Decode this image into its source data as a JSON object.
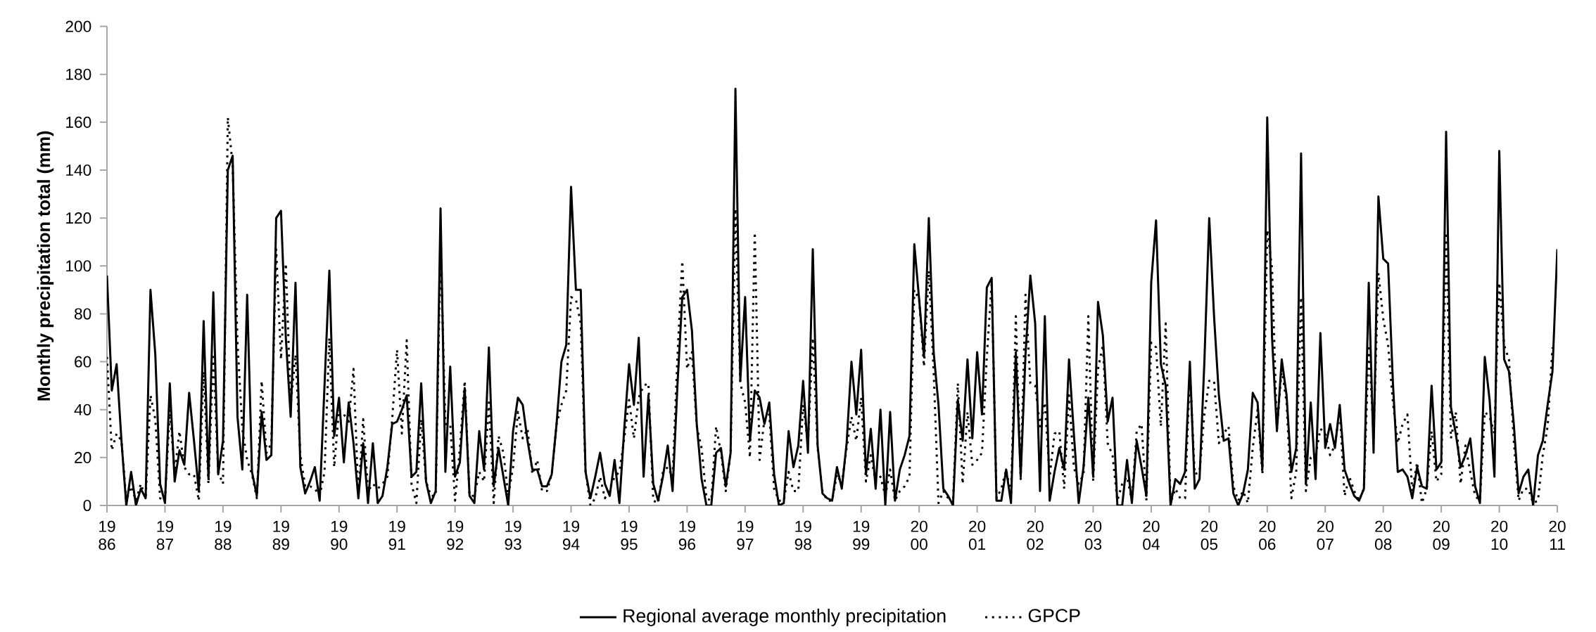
{
  "chart_data": {
    "type": "line",
    "ylabel": "Monthly precipitation total (mm)",
    "x": [
      "1986-01",
      "1986-02",
      "1986-03",
      "1986-04",
      "1986-05",
      "1986-06",
      "1986-07",
      "1986-08",
      "1986-09",
      "1986-10",
      "1986-11",
      "1986-12",
      "1987-01",
      "1987-02",
      "1987-03",
      "1987-04",
      "1987-05",
      "1987-06",
      "1987-07",
      "1987-08",
      "1987-09",
      "1987-10",
      "1987-11",
      "1987-12",
      "1988-01",
      "1988-02",
      "1988-03",
      "1988-04",
      "1988-05",
      "1988-06",
      "1988-07",
      "1988-08",
      "1988-09",
      "1988-10",
      "1988-11",
      "1988-12",
      "1989-01",
      "1989-02",
      "1989-03",
      "1989-04",
      "1989-05",
      "1989-06",
      "1989-07",
      "1989-08",
      "1989-09",
      "1989-10",
      "1989-11",
      "1989-12",
      "1990-01",
      "1990-02",
      "1990-03",
      "1990-04",
      "1990-05",
      "1990-06",
      "1990-07",
      "1990-08",
      "1990-09",
      "1990-10",
      "1990-11",
      "1990-12",
      "1991-01",
      "1991-02",
      "1991-03",
      "1991-04",
      "1991-05",
      "1991-06",
      "1991-07",
      "1991-08",
      "1991-09",
      "1991-10",
      "1991-11",
      "1991-12",
      "1992-01",
      "1992-02",
      "1992-03",
      "1992-04",
      "1992-05",
      "1992-06",
      "1992-07",
      "1992-08",
      "1992-09",
      "1992-10",
      "1992-11",
      "1992-12",
      "1993-01",
      "1993-02",
      "1993-03",
      "1993-04",
      "1993-05",
      "1993-06",
      "1993-07",
      "1993-08",
      "1993-09",
      "1993-10",
      "1993-11",
      "1993-12",
      "1994-01",
      "1994-02",
      "1994-03",
      "1994-04",
      "1994-05",
      "1994-06",
      "1994-07",
      "1994-08",
      "1994-09",
      "1994-10",
      "1994-11",
      "1994-12",
      "1995-01",
      "1995-02",
      "1995-03",
      "1995-04",
      "1995-05",
      "1995-06",
      "1995-07",
      "1995-08",
      "1995-09",
      "1995-10",
      "1995-11",
      "1995-12",
      "1996-01",
      "1996-02",
      "1996-03",
      "1996-04",
      "1996-05",
      "1996-06",
      "1996-07",
      "1996-08",
      "1996-09",
      "1996-10",
      "1996-11",
      "1996-12",
      "1997-01",
      "1997-02",
      "1997-03",
      "1997-04",
      "1997-05",
      "1997-06",
      "1997-07",
      "1997-08",
      "1997-09",
      "1997-10",
      "1997-11",
      "1997-12",
      "1998-01",
      "1998-02",
      "1998-03",
      "1998-04",
      "1998-05",
      "1998-06",
      "1998-07",
      "1998-08",
      "1998-09",
      "1998-10",
      "1998-11",
      "1998-12",
      "1999-01",
      "1999-02",
      "1999-03",
      "1999-04",
      "1999-05",
      "1999-06",
      "1999-07",
      "1999-08",
      "1999-09",
      "1999-10",
      "1999-11",
      "1999-12",
      "2000-01",
      "2000-02",
      "2000-03",
      "2000-04",
      "2000-05",
      "2000-06",
      "2000-07",
      "2000-08",
      "2000-09",
      "2000-10",
      "2000-11",
      "2000-12",
      "2001-01",
      "2001-02",
      "2001-03",
      "2001-04",
      "2001-05",
      "2001-06",
      "2001-07",
      "2001-08",
      "2001-09",
      "2001-10",
      "2001-11",
      "2001-12",
      "2002-01",
      "2002-02",
      "2002-03",
      "2002-04",
      "2002-05",
      "2002-06",
      "2002-07",
      "2002-08",
      "2002-09",
      "2002-10",
      "2002-11",
      "2002-12",
      "2003-01",
      "2003-02",
      "2003-03",
      "2003-04",
      "2003-05",
      "2003-06",
      "2003-07",
      "2003-08",
      "2003-09",
      "2003-10",
      "2003-11",
      "2003-12",
      "2004-01",
      "2004-02",
      "2004-03",
      "2004-04",
      "2004-05",
      "2004-06",
      "2004-07",
      "2004-08",
      "2004-09",
      "2004-10",
      "2004-11",
      "2004-12",
      "2005-01",
      "2005-02",
      "2005-03",
      "2005-04",
      "2005-05",
      "2005-06",
      "2005-07",
      "2005-08",
      "2005-09",
      "2005-10",
      "2005-11",
      "2005-12",
      "2006-01",
      "2006-02",
      "2006-03",
      "2006-04",
      "2006-05",
      "2006-06",
      "2006-07",
      "2006-08",
      "2006-09",
      "2006-10",
      "2006-11",
      "2006-12",
      "2007-01",
      "2007-02",
      "2007-03",
      "2007-04",
      "2007-05",
      "2007-06",
      "2007-07",
      "2007-08",
      "2007-09",
      "2007-10",
      "2007-11",
      "2007-12",
      "2008-01",
      "2008-02",
      "2008-03",
      "2008-04",
      "2008-05",
      "2008-06",
      "2008-07",
      "2008-08",
      "2008-09",
      "2008-10",
      "2008-11",
      "2008-12",
      "2009-01",
      "2009-02",
      "2009-03",
      "2009-04",
      "2009-05",
      "2009-06",
      "2009-07",
      "2009-08",
      "2009-09",
      "2009-10",
      "2009-11",
      "2009-12",
      "2010-01",
      "2010-02",
      "2010-03",
      "2010-04",
      "2010-05",
      "2010-06",
      "2010-07",
      "2010-08",
      "2010-09",
      "2010-10",
      "2010-11",
      "2010-12",
      "2011-01"
    ],
    "series": [
      {
        "name": "Regional average monthly precipitation",
        "color": "#000000",
        "line_style": "solid",
        "values": [
          96,
          48,
          59,
          27,
          0,
          14,
          0,
          7,
          3,
          90,
          63,
          9,
          1,
          51,
          10,
          23,
          17,
          47,
          27,
          6,
          77,
          11,
          89,
          13,
          27,
          140,
          146,
          37,
          15,
          88,
          14,
          4,
          39,
          19,
          21,
          120,
          123,
          70,
          37,
          93,
          16,
          5,
          10,
          16,
          2,
          50,
          98,
          29,
          45,
          18,
          43,
          26,
          3,
          26,
          1,
          26,
          1,
          4,
          16,
          34,
          35,
          40,
          46,
          12,
          14,
          51,
          10,
          1,
          6,
          124,
          14,
          58,
          12,
          18,
          49,
          4,
          1,
          31,
          15,
          66,
          8,
          24,
          12,
          0,
          31,
          45,
          42,
          27,
          15,
          15,
          8,
          8,
          13,
          34,
          60,
          67,
          133,
          90,
          90,
          14,
          3,
          12,
          22,
          9,
          4,
          19,
          1,
          32,
          59,
          42,
          70,
          12,
          46,
          9,
          2,
          12,
          25,
          6,
          50,
          87,
          90,
          73,
          34,
          11,
          0,
          0,
          22,
          24,
          8,
          22,
          174,
          52,
          87,
          27,
          48,
          45,
          34,
          43,
          13,
          0,
          1,
          31,
          16,
          25,
          52,
          22,
          107,
          25,
          5,
          3,
          2,
          16,
          7,
          26,
          60,
          38,
          65,
          13,
          32,
          7,
          40,
          0,
          39,
          2,
          15,
          21,
          29,
          109,
          86,
          62,
          120,
          64,
          42,
          7,
          4,
          0,
          44,
          27,
          61,
          28,
          64,
          38,
          91,
          95,
          2,
          2,
          15,
          1,
          64,
          12,
          63,
          96,
          76,
          6,
          79,
          2,
          14,
          24,
          15,
          61,
          30,
          1,
          16,
          45,
          12,
          85,
          71,
          35,
          45,
          0,
          0,
          19,
          1,
          27,
          16,
          4,
          93,
          119,
          59,
          50,
          0,
          11,
          9,
          14,
          60,
          7,
          11,
          60,
          120,
          79,
          46,
          27,
          28,
          5,
          0,
          5,
          15,
          47,
          43,
          15,
          162,
          70,
          31,
          61,
          46,
          14,
          24,
          147,
          9,
          43,
          11,
          72,
          24,
          34,
          24,
          42,
          15,
          9,
          4,
          2,
          7,
          93,
          22,
          129,
          103,
          101,
          51,
          14,
          15,
          12,
          3,
          16,
          8,
          7,
          50,
          15,
          18,
          156,
          41,
          30,
          16,
          21,
          28,
          8,
          1,
          62,
          44,
          12,
          148,
          61,
          56,
          34,
          5,
          12,
          15,
          0,
          21,
          27,
          42,
          56,
          107
        ]
      },
      {
        "name": "GPCP",
        "color": "#000000",
        "line_style": "dotted",
        "values": [
          62,
          23,
          30,
          27,
          2,
          8,
          2,
          9,
          3,
          46,
          36,
          3,
          2,
          40,
          14,
          31,
          16,
          13,
          13,
          2,
          56,
          9,
          62,
          14,
          9,
          162,
          142,
          68,
          32,
          19,
          13,
          3,
          52,
          22,
          26,
          107,
          61,
          101,
          42,
          63,
          21,
          8,
          8,
          7,
          4,
          14,
          70,
          16,
          40,
          38,
          35,
          57,
          4,
          36,
          6,
          9,
          7,
          9,
          12,
          36,
          65,
          30,
          69,
          9,
          1,
          36,
          10,
          4,
          4,
          109,
          34,
          34,
          2,
          24,
          52,
          4,
          4,
          14,
          10,
          43,
          1,
          29,
          22,
          4,
          16,
          39,
          28,
          32,
          13,
          19,
          6,
          6,
          13,
          34,
          42,
          48,
          87,
          86,
          76,
          14,
          0,
          3,
          12,
          3,
          7,
          12,
          14,
          28,
          44,
          28,
          45,
          50,
          51,
          2,
          1,
          14,
          16,
          12,
          62,
          102,
          57,
          64,
          33,
          24,
          3,
          2,
          33,
          22,
          6,
          22,
          124,
          51,
          43,
          20,
          114,
          19,
          36,
          38,
          7,
          2,
          2,
          14,
          6,
          6,
          42,
          26,
          70,
          24,
          6,
          2,
          2,
          13,
          9,
          24,
          37,
          27,
          45,
          10,
          21,
          10,
          12,
          4,
          15,
          2,
          6,
          8,
          12,
          90,
          86,
          58,
          98,
          56,
          1,
          6,
          3,
          1,
          51,
          9,
          39,
          17,
          19,
          22,
          62,
          93,
          3,
          7,
          15,
          4,
          79,
          11,
          88,
          51,
          50,
          33,
          43,
          12,
          30,
          31,
          7,
          46,
          16,
          9,
          13,
          79,
          10,
          57,
          67,
          26,
          21,
          2,
          9,
          12,
          2,
          31,
          34,
          2,
          68,
          66,
          33,
          76,
          1,
          7,
          3,
          3,
          56,
          13,
          14,
          38,
          52,
          52,
          26,
          30,
          33,
          8,
          2,
          6,
          1,
          24,
          40,
          13,
          115,
          99,
          32,
          57,
          43,
          3,
          14,
          87,
          6,
          20,
          21,
          32,
          30,
          21,
          25,
          40,
          4,
          12,
          6,
          2,
          7,
          67,
          30,
          97,
          78,
          67,
          43,
          26,
          34,
          38,
          6,
          18,
          1,
          7,
          31,
          10,
          13,
          114,
          28,
          39,
          9,
          25,
          14,
          4,
          2,
          39,
          37,
          30,
          93,
          67,
          61,
          27,
          2,
          7,
          7,
          1,
          2,
          21,
          33,
          66,
          null
        ]
      }
    ],
    "xlim": [
      "1986-01",
      "2011-01"
    ],
    "xticks": [
      {
        "value": "1986-01",
        "label": "19 86"
      },
      {
        "value": "1987-01",
        "label": "19 87"
      },
      {
        "value": "1988-01",
        "label": "19 88"
      },
      {
        "value": "1989-01",
        "label": "19 89"
      },
      {
        "value": "1990-01",
        "label": "19 90"
      },
      {
        "value": "1991-01",
        "label": "19 91"
      },
      {
        "value": "1992-01",
        "label": "19 92"
      },
      {
        "value": "1993-01",
        "label": "19 93"
      },
      {
        "value": "1994-01",
        "label": "19 94"
      },
      {
        "value": "1995-01",
        "label": "19 95"
      },
      {
        "value": "1996-01",
        "label": "19 96"
      },
      {
        "value": "1997-01",
        "label": "19 97"
      },
      {
        "value": "1998-01",
        "label": "19 98"
      },
      {
        "value": "1999-01",
        "label": "19 99"
      },
      {
        "value": "2000-01",
        "label": "20 00"
      },
      {
        "value": "2001-01",
        "label": "20 01"
      },
      {
        "value": "2002-01",
        "label": "20 02"
      },
      {
        "value": "2003-01",
        "label": "20 03"
      },
      {
        "value": "2004-01",
        "label": "20 04"
      },
      {
        "value": "2005-01",
        "label": "20 05"
      },
      {
        "value": "2006-01",
        "label": "20 06"
      },
      {
        "value": "2007-01",
        "label": "20 07"
      },
      {
        "value": "2008-01",
        "label": "20 08"
      },
      {
        "value": "2009-01",
        "label": "20 09"
      },
      {
        "value": "2010-01",
        "label": "20 10"
      },
      {
        "value": "2011-01",
        "label": "20 11"
      }
    ],
    "ylim": [
      0,
      200
    ],
    "yticks": [
      0,
      20,
      40,
      60,
      80,
      100,
      120,
      140,
      160,
      180,
      200
    ],
    "legend": "bottom",
    "marker": "none"
  }
}
